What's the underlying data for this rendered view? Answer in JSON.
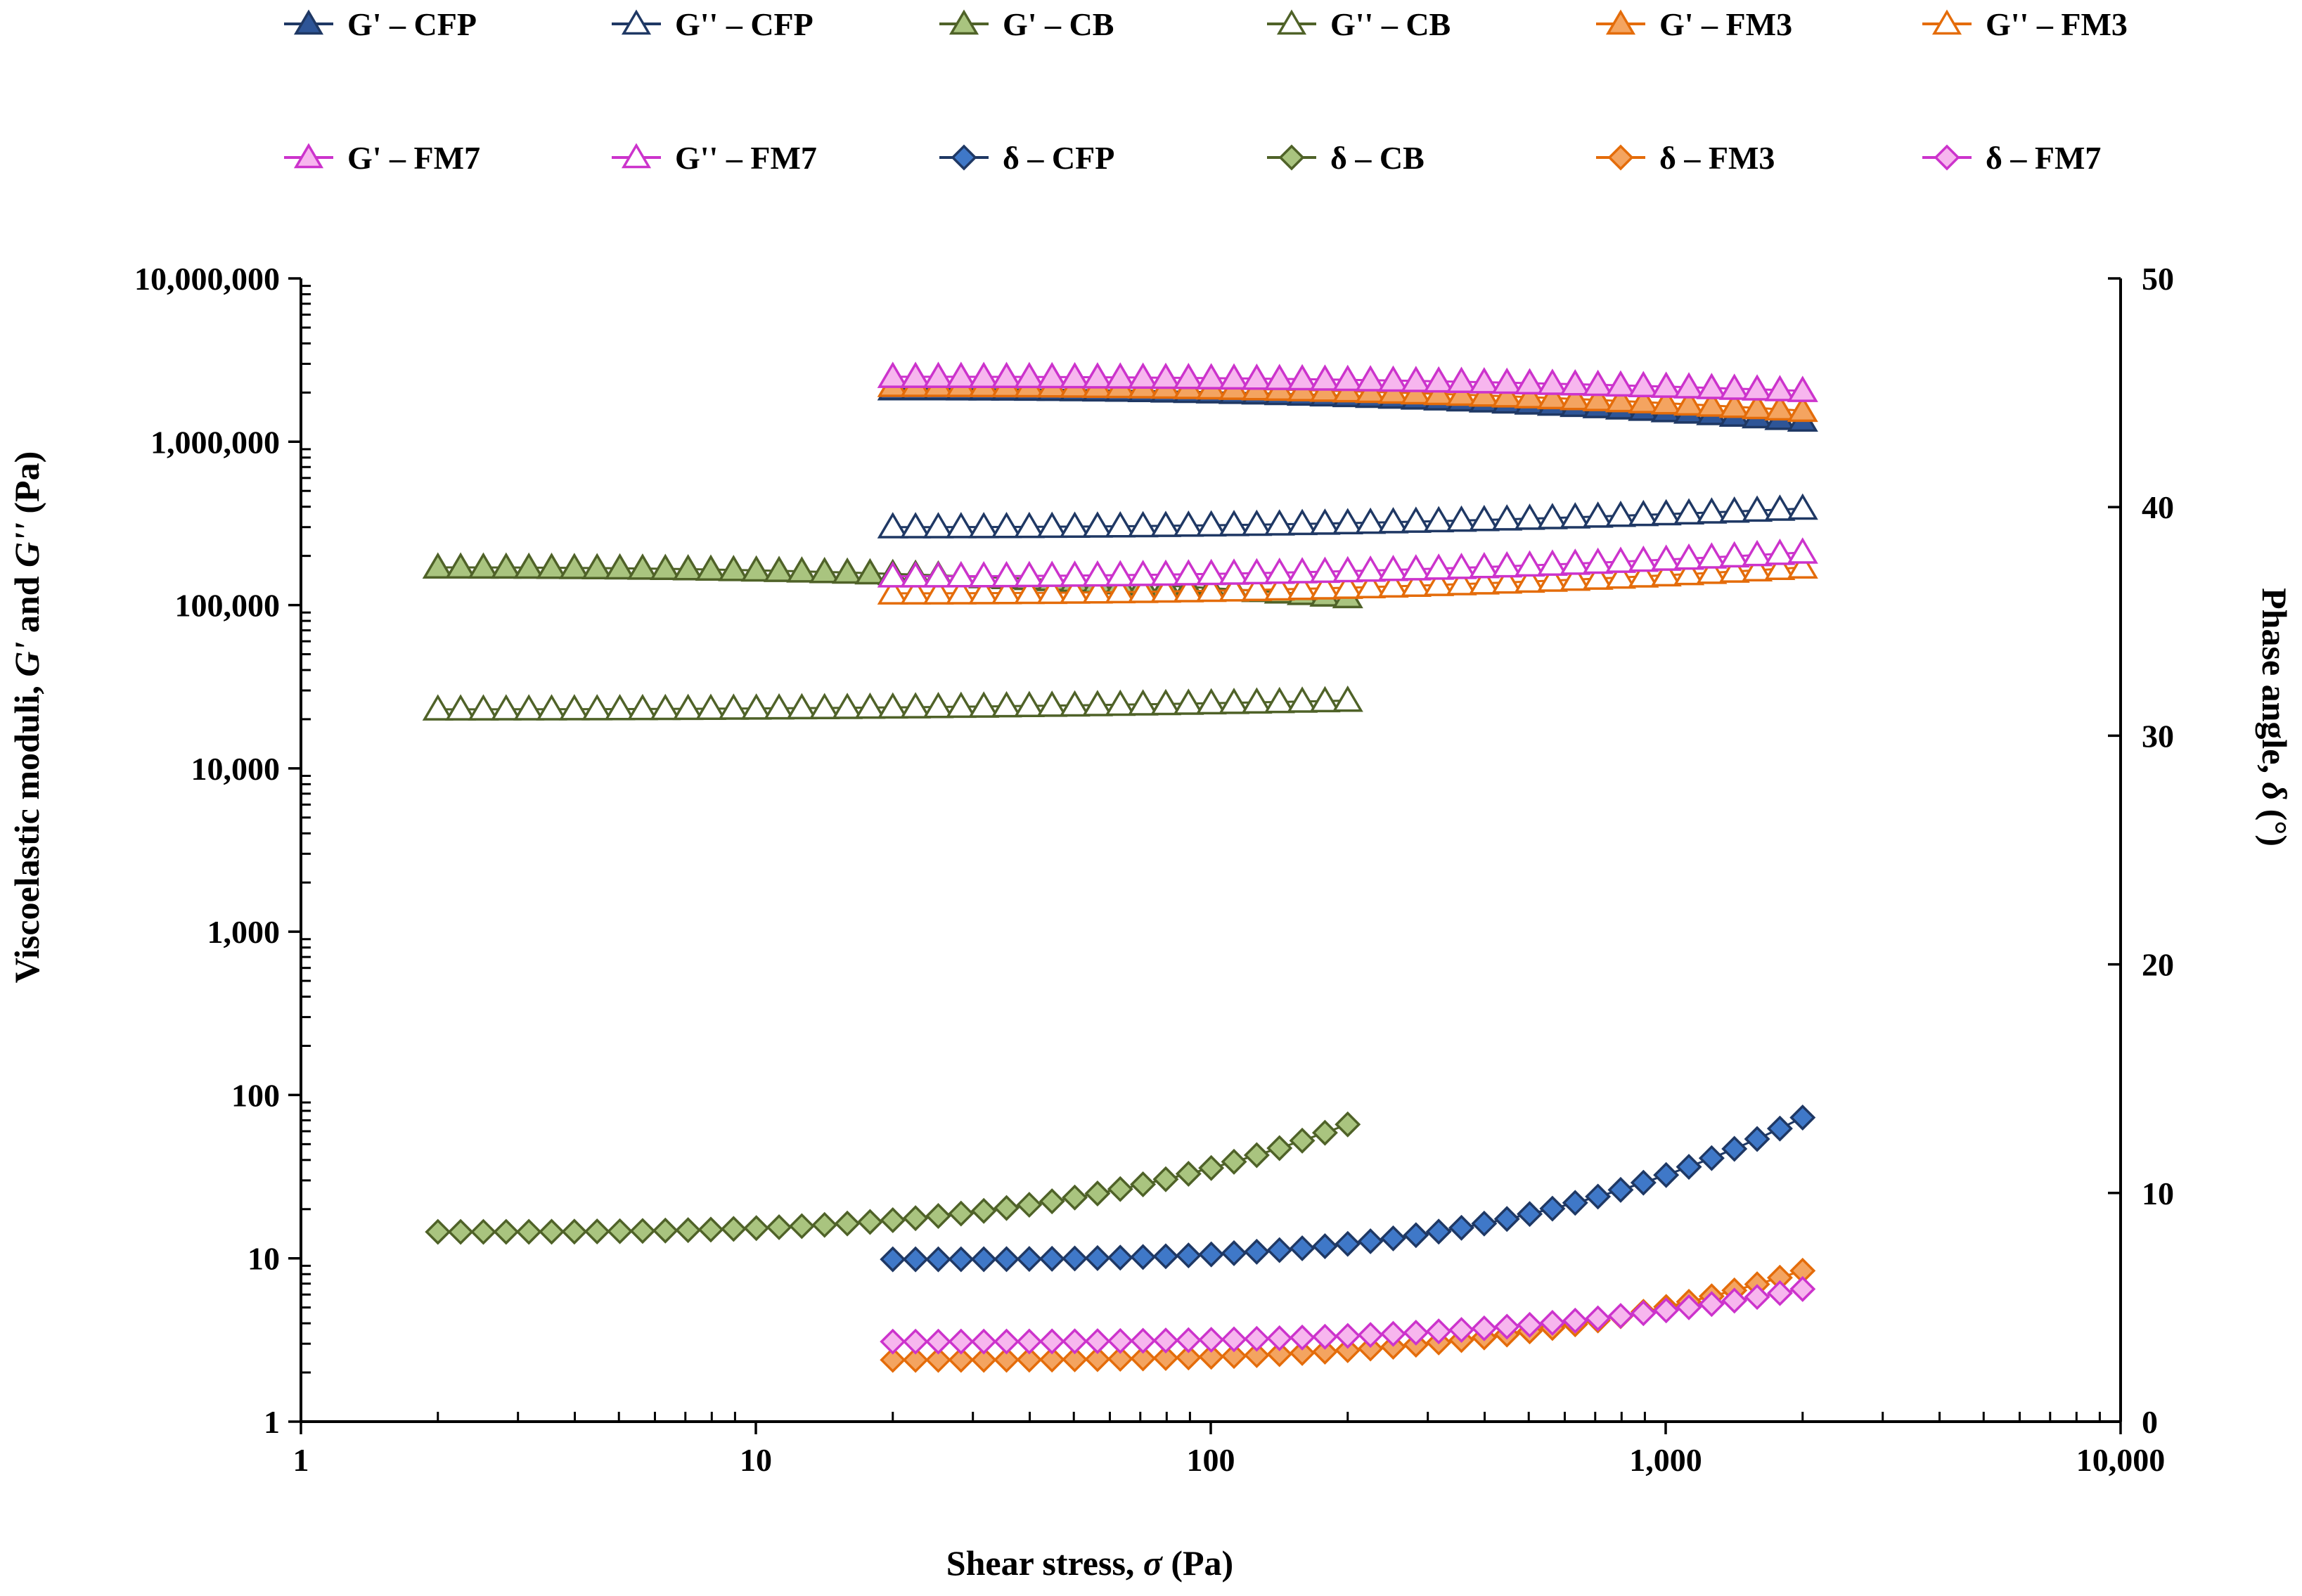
{
  "chart_data": {
    "type": "scatter",
    "title": "",
    "xlabel": "Shear stress, σ (Pa)",
    "xlabel_parts": [
      "Shear stress, ",
      "σ",
      " (Pa)"
    ],
    "ylabel": "Viscoelastic moduli, G' and G'' (Pa)",
    "ylabel_parts": [
      "Viscoelastic moduli, ",
      "G'",
      " and ",
      "G''",
      " (Pa)"
    ],
    "y2label": "Phase angle, δ (°)",
    "y2label_parts": [
      "Phase angle, ",
      "δ",
      " (°)"
    ],
    "x_scale": "log",
    "y_scale": "log",
    "xlim": [
      1,
      10000
    ],
    "ylim": [
      1,
      10000000
    ],
    "y2lim": [
      0,
      50
    ],
    "x_ticks": [
      "1",
      "10",
      "100",
      "1,000",
      "10,000"
    ],
    "y_ticks": [
      "1",
      "10",
      "100",
      "1,000",
      "10,000",
      "100,000",
      "1,000,000",
      "10,000,000"
    ],
    "y2_ticks": [
      "0",
      "10",
      "20",
      "30",
      "40",
      "50"
    ],
    "legend_position": "top",
    "series": [
      {
        "name": "G' – CFP",
        "marker": "triangle",
        "fill": "#2e5597",
        "edge": "#1f3864",
        "axis": "left",
        "x_range": [
          20,
          2000
        ],
        "y_start": 2100000,
        "y_end": 1350000
      },
      {
        "name": "G'' – CFP",
        "marker": "triangle",
        "fill": "#ffffff",
        "edge": "#1f3864",
        "axis": "left",
        "x_range": [
          20,
          2000
        ],
        "y_start": 300000,
        "y_end": 390000
      },
      {
        "name": "G' – CB",
        "marker": "triangle",
        "fill": "#a9c47f",
        "edge": "#4f6228",
        "axis": "left",
        "x_range": [
          2,
          200
        ],
        "y_start": 170000,
        "y_end": 112000
      },
      {
        "name": "G'' – CB",
        "marker": "triangle",
        "fill": "#ffffff",
        "edge": "#4f6228",
        "axis": "left",
        "x_range": [
          2,
          200
        ],
        "y_start": 23000,
        "y_end": 26000
      },
      {
        "name": "G' – FM3",
        "marker": "triangle",
        "fill": "#f4a460",
        "edge": "#e46c0a",
        "axis": "left",
        "x_range": [
          20,
          2000
        ],
        "y_start": 2200000,
        "y_end": 1550000
      },
      {
        "name": "G'' – FM3",
        "marker": "triangle",
        "fill": "#ffffff",
        "edge": "#e46c0a",
        "axis": "left",
        "x_range": [
          20,
          2000
        ],
        "y_start": 118000,
        "y_end": 170000
      },
      {
        "name": "G' – FM7",
        "marker": "triangle",
        "fill": "#f7b6ee",
        "edge": "#cc33cc",
        "axis": "left",
        "x_range": [
          20,
          2000
        ],
        "y_start": 2500000,
        "y_end": 2050000
      },
      {
        "name": "G'' – FM7",
        "marker": "triangle",
        "fill": "#ffffff",
        "edge": "#cc33cc",
        "axis": "left",
        "x_range": [
          20,
          2000
        ],
        "y_start": 150000,
        "y_end": 210000
      },
      {
        "name": "δ – CFP",
        "marker": "diamond",
        "fill": "#3f78c8",
        "edge": "#1f3864",
        "axis": "right",
        "x_range": [
          20,
          2000
        ],
        "y_start": 7.1,
        "y_end": 13.3
      },
      {
        "name": "δ – CB",
        "marker": "diamond",
        "fill": "#a9c47f",
        "edge": "#4f6228",
        "axis": "right",
        "x_range": [
          2,
          200
        ],
        "y_start": 8.3,
        "y_end": 13.0
      },
      {
        "name": "δ – FM3",
        "marker": "diamond",
        "fill": "#f4a460",
        "edge": "#e46c0a",
        "axis": "right",
        "x_range": [
          20,
          2000
        ],
        "y_start": 2.7,
        "y_end": 6.6
      },
      {
        "name": "δ – FM7",
        "marker": "diamond",
        "fill": "#f7b6ee",
        "edge": "#cc33cc",
        "axis": "right",
        "x_range": [
          20,
          2000
        ],
        "y_start": 3.5,
        "y_end": 5.8
      }
    ]
  }
}
